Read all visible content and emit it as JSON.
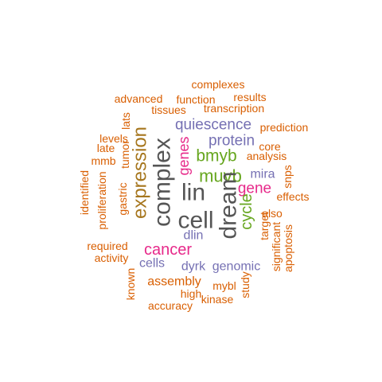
{
  "colors": {
    "dark": "#555555",
    "green": "#66A61E",
    "orange": "#D95F02",
    "purple": "#7570B3",
    "magenta": "#E7298A",
    "gold": "#A6761D"
  },
  "words": [
    {
      "text": "complexes",
      "color": "orange"
    },
    {
      "text": "advanced",
      "color": "orange"
    },
    {
      "text": "function",
      "color": "orange"
    },
    {
      "text": "results",
      "color": "orange"
    },
    {
      "text": "tissues",
      "color": "orange"
    },
    {
      "text": "transcription",
      "color": "orange"
    },
    {
      "text": "lats",
      "color": "orange"
    },
    {
      "text": "quiescence",
      "color": "purple"
    },
    {
      "text": "prediction",
      "color": "orange"
    },
    {
      "text": "levels",
      "color": "orange"
    },
    {
      "text": "protein",
      "color": "purple"
    },
    {
      "text": "late",
      "color": "orange"
    },
    {
      "text": "core",
      "color": "orange"
    },
    {
      "text": "bmyb",
      "color": "green"
    },
    {
      "text": "analysis",
      "color": "orange"
    },
    {
      "text": "mmb",
      "color": "orange"
    },
    {
      "text": "tumor",
      "color": "orange"
    },
    {
      "text": "genes",
      "color": "magenta"
    },
    {
      "text": "expression",
      "color": "gold"
    },
    {
      "text": "complex",
      "color": "dark"
    },
    {
      "text": "muvb",
      "color": "green"
    },
    {
      "text": "mira",
      "color": "purple"
    },
    {
      "text": "snps",
      "color": "orange"
    },
    {
      "text": "identified",
      "color": "orange"
    },
    {
      "text": "lin",
      "color": "dark"
    },
    {
      "text": "gene",
      "color": "magenta"
    },
    {
      "text": "effects",
      "color": "orange"
    },
    {
      "text": "proliferation",
      "color": "orange"
    },
    {
      "text": "gastric",
      "color": "orange"
    },
    {
      "text": "dream",
      "color": "dark"
    },
    {
      "text": "also",
      "color": "orange"
    },
    {
      "text": "cycle",
      "color": "green"
    },
    {
      "text": "cell",
      "color": "dark"
    },
    {
      "text": "target",
      "color": "orange"
    },
    {
      "text": "dlin",
      "color": "purple"
    },
    {
      "text": "significant",
      "color": "orange"
    },
    {
      "text": "apoptosis",
      "color": "orange"
    },
    {
      "text": "required",
      "color": "orange"
    },
    {
      "text": "cancer",
      "color": "magenta"
    },
    {
      "text": "activity",
      "color": "orange"
    },
    {
      "text": "cells",
      "color": "purple"
    },
    {
      "text": "dyrk",
      "color": "purple"
    },
    {
      "text": "genomic",
      "color": "purple"
    },
    {
      "text": "known",
      "color": "orange"
    },
    {
      "text": "assembly",
      "color": "orange"
    },
    {
      "text": "mybl",
      "color": "orange"
    },
    {
      "text": "study",
      "color": "orange"
    },
    {
      "text": "high",
      "color": "orange"
    },
    {
      "text": "kinase",
      "color": "orange"
    },
    {
      "text": "accuracy",
      "color": "orange"
    }
  ]
}
